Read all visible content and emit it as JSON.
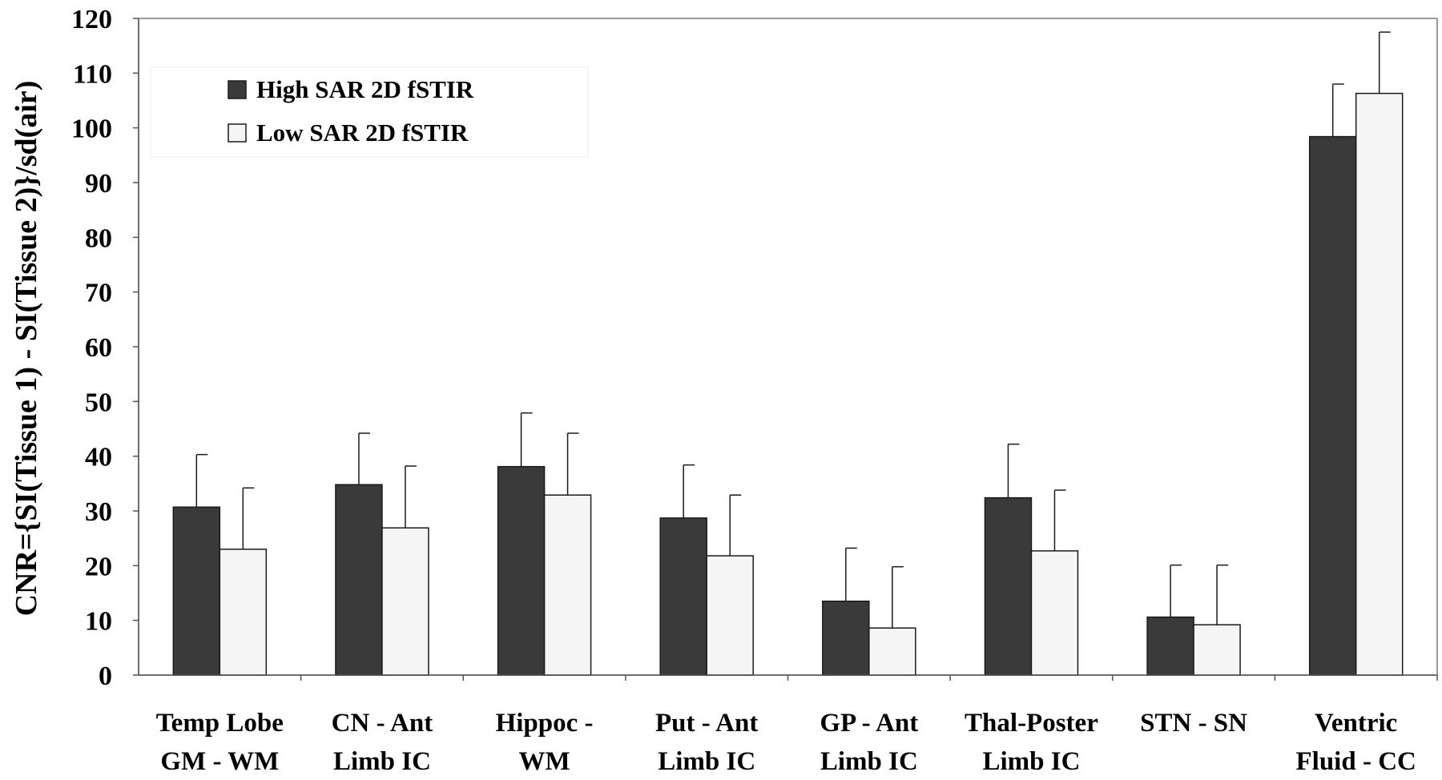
{
  "chart_data": {
    "type": "bar",
    "categories": [
      [
        "Temp Lobe",
        "GM - WM"
      ],
      [
        "CN - Ant",
        "Limb IC"
      ],
      [
        "Hippoc -",
        "WM"
      ],
      [
        "Put - Ant",
        "Limb IC"
      ],
      [
        "GP - Ant",
        "Limb IC"
      ],
      [
        "Thal-Poster",
        "Limb IC"
      ],
      [
        "STN - SN"
      ],
      [
        "Ventric",
        "Fluid - CC"
      ]
    ],
    "series": [
      {
        "name": "High SAR 2D fSTIR",
        "color": "#3a3a3a",
        "values": [
          30.7,
          34.8,
          38.1,
          28.7,
          13.5,
          32.4,
          10.6,
          98.4
        ],
        "errors": [
          9.6,
          9.4,
          9.8,
          9.7,
          9.7,
          9.8,
          9.5,
          9.6
        ]
      },
      {
        "name": "Low SAR 2D fSTIR",
        "color": "#f5f5f5",
        "values": [
          23.0,
          26.9,
          32.9,
          21.8,
          8.6,
          22.7,
          9.2,
          106.3
        ],
        "errors": [
          11.2,
          11.3,
          11.3,
          11.1,
          11.2,
          11.1,
          10.9,
          11.2
        ]
      }
    ],
    "ylabel": "CNR={SI(Tissue 1) - SI(Tissue 2)}/sd(air)",
    "xlabel": "",
    "ylim": [
      0,
      120
    ],
    "yticks": [
      0,
      10,
      20,
      30,
      40,
      50,
      60,
      70,
      80,
      90,
      100,
      110,
      120
    ],
    "grid": false,
    "legend_position": "top-left"
  }
}
